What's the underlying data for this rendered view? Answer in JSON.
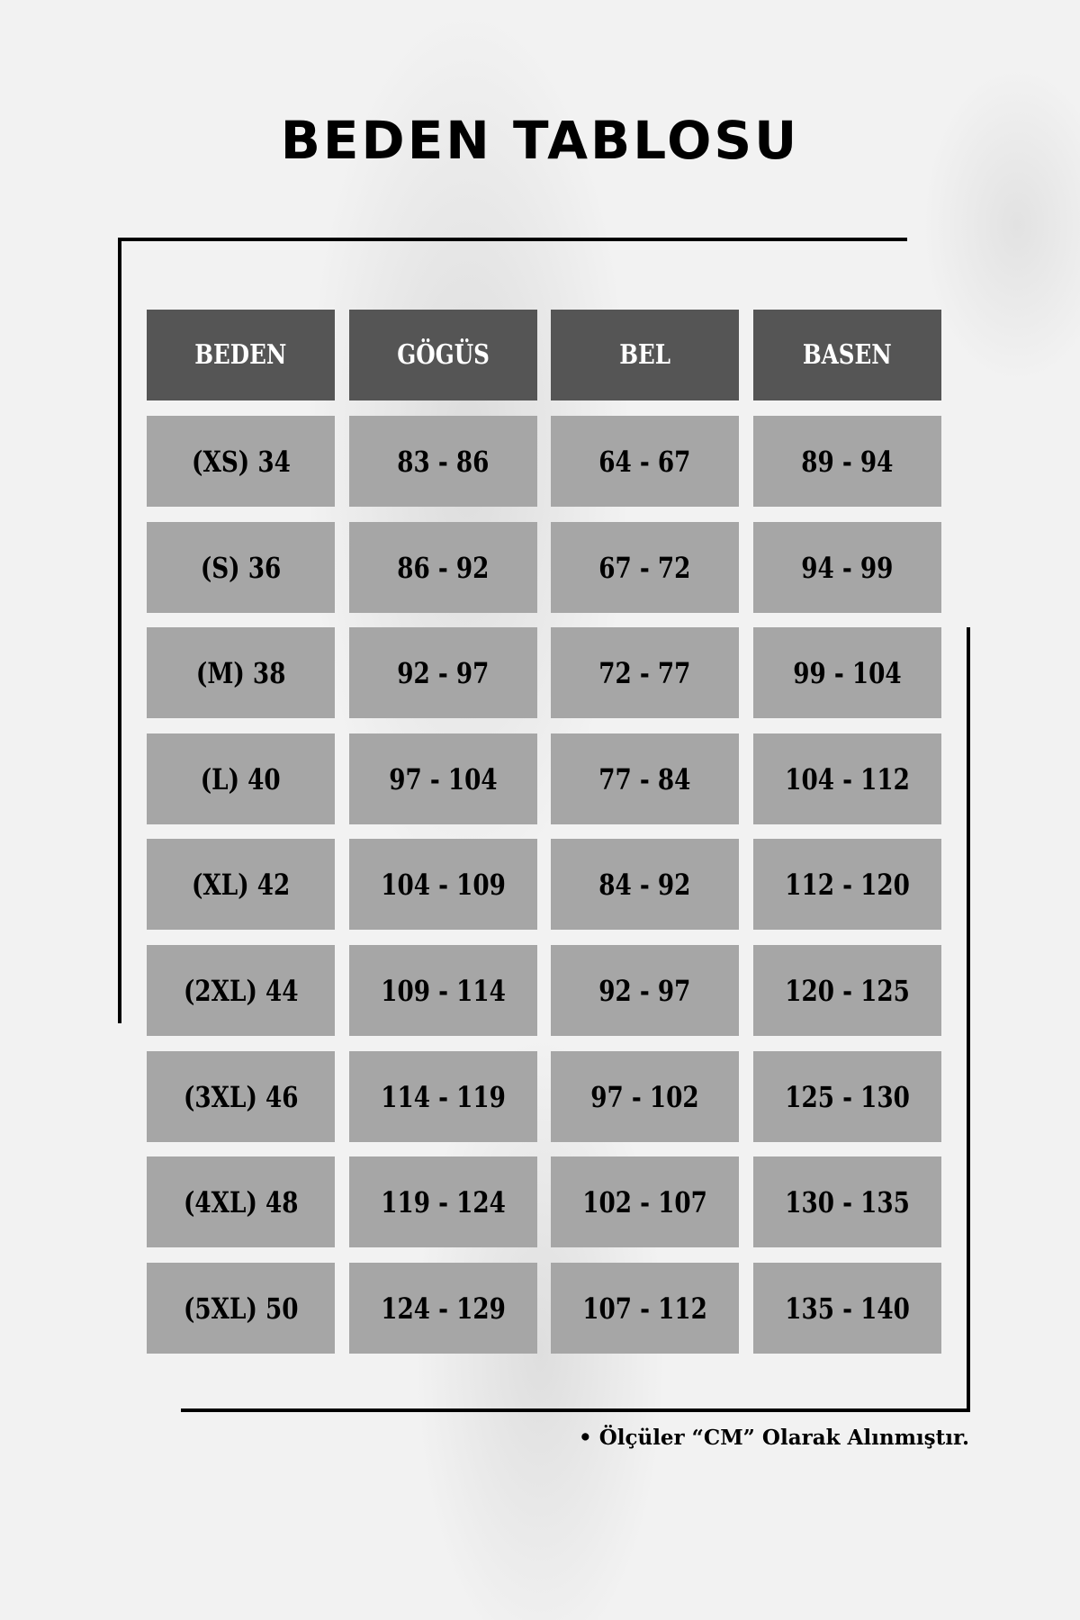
{
  "title": "BEDEN TABLOSU",
  "colors": {
    "header_bg": "#555555",
    "cell_bg": "#a6a6a6",
    "background": "#f2f2f2"
  },
  "table": {
    "headers": [
      "BEDEN",
      "GÖGÜS",
      "BEL",
      "BASEN"
    ],
    "rows": [
      [
        "(XS) 34",
        "83 - 86",
        "64 - 67",
        "89 - 94"
      ],
      [
        "(S) 36",
        "86 - 92",
        "67 - 72",
        "94 - 99"
      ],
      [
        "(M) 38",
        "92 - 97",
        "72 - 77",
        "99 - 104"
      ],
      [
        "(L) 40",
        "97 - 104",
        "77 - 84",
        "104 - 112"
      ],
      [
        "(XL) 42",
        "104 - 109",
        "84 - 92",
        "112 - 120"
      ],
      [
        "(2XL) 44",
        "109 - 114",
        "92 - 97",
        "120 - 125"
      ],
      [
        "(3XL) 46",
        "114 - 119",
        "97 - 102",
        "125 - 130"
      ],
      [
        "(4XL) 48",
        "119 - 124",
        "102 - 107",
        "130 - 135"
      ],
      [
        "(5XL) 50",
        "124 - 129",
        "107 - 112",
        "135 - 140"
      ]
    ]
  },
  "note": "• Ölçüler “CM” Olarak Alınmıştır."
}
